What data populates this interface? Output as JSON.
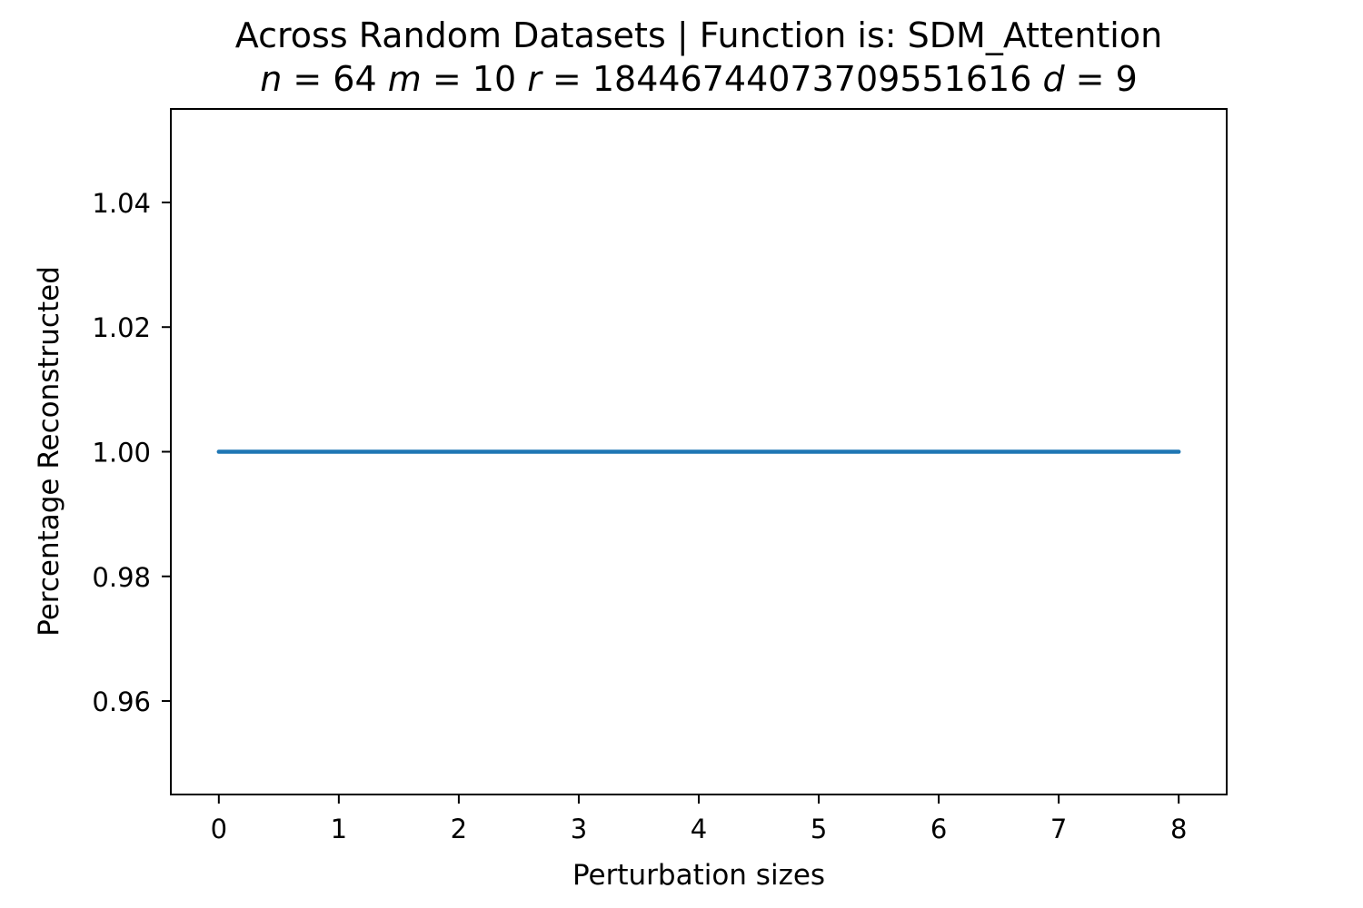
{
  "chart_data": {
    "type": "line",
    "title": "Across Random Datasets | Function is: SDM_Attention",
    "subtitle": {
      "parts": [
        {
          "var": "n",
          "eq": " = ",
          "val": "64"
        },
        {
          "var": "m",
          "eq": " = ",
          "val": "10"
        },
        {
          "var": "r",
          "eq": " = ",
          "val": "18446744073709551616"
        },
        {
          "var": "d",
          "eq": " = ",
          "val": "9"
        }
      ]
    },
    "xlabel": "Perturbation sizes",
    "ylabel": "Percentage Reconstructed",
    "xlim": [
      -0.4,
      8.4
    ],
    "ylim": [
      0.945,
      1.055
    ],
    "xticks": [
      {
        "value": 0,
        "label": "0"
      },
      {
        "value": 1,
        "label": "1"
      },
      {
        "value": 2,
        "label": "2"
      },
      {
        "value": 3,
        "label": "3"
      },
      {
        "value": 4,
        "label": "4"
      },
      {
        "value": 5,
        "label": "5"
      },
      {
        "value": 6,
        "label": "6"
      },
      {
        "value": 7,
        "label": "7"
      },
      {
        "value": 8,
        "label": "8"
      }
    ],
    "yticks": [
      {
        "value": 0.96,
        "label": "0.96"
      },
      {
        "value": 0.98,
        "label": "0.98"
      },
      {
        "value": 1.0,
        "label": "1.00"
      },
      {
        "value": 1.02,
        "label": "1.02"
      },
      {
        "value": 1.04,
        "label": "1.04"
      }
    ],
    "grid": false,
    "series": [
      {
        "color": "#1f77b4",
        "x": [
          0,
          1,
          2,
          3,
          4,
          5,
          6,
          7,
          8
        ],
        "y": [
          1.0,
          1.0,
          1.0,
          1.0,
          1.0,
          1.0,
          1.0,
          1.0,
          1.0
        ]
      }
    ]
  }
}
